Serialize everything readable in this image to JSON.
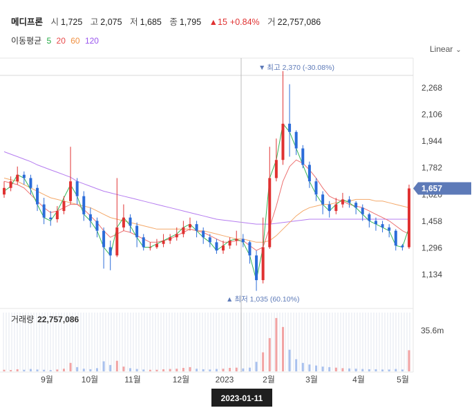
{
  "header": {
    "name": "메디프론",
    "open_label": "시",
    "open": "1,725",
    "high_label": "고",
    "high": "2,075",
    "low_label": "저",
    "low": "1,685",
    "close_label": "종",
    "close": "1,795",
    "change_arrow": "▲",
    "change": "15",
    "change_pct": "+0.84%",
    "volume_label": "거",
    "volume": "22,757,086"
  },
  "ma_legend": {
    "label": "이동평균",
    "periods": [
      {
        "label": "5",
        "color": "#22aa44"
      },
      {
        "label": "20",
        "color": "#e84a4a"
      },
      {
        "label": "60",
        "color": "#f09040"
      },
      {
        "label": "120",
        "color": "#9955ee"
      }
    ]
  },
  "scale_mode": {
    "label": "Linear",
    "icon": "chevron-down-icon"
  },
  "colors": {
    "up": "#e03232",
    "down": "#2b6cd9",
    "accent": "#5d7ab8"
  },
  "chart_data": {
    "type": "candlestick",
    "price_ticks": [
      "2,268",
      "2,106",
      "1,944",
      "1,782",
      "1,620",
      "1,458",
      "1,296",
      "1,134"
    ],
    "price_tick_values": [
      2268,
      2106,
      1944,
      1782,
      1620,
      1458,
      1296,
      1134
    ],
    "ylim": [
      1000,
      2500
    ],
    "x_ticks": [
      "9월",
      "10월",
      "11월",
      "12월",
      "2023",
      "2월",
      "3월",
      "4월",
      "5월"
    ],
    "last_price": {
      "value": 1657,
      "label": "1,657"
    },
    "max_label": {
      "value": 2370,
      "label": "최고 2,370 (-30.08%)",
      "prefix": "▼"
    },
    "min_label": {
      "value": 1035,
      "label": "최저 1,035 (60.10%)",
      "prefix": "▲"
    },
    "crosshair_date": "2023-01-11",
    "volume_panel": {
      "label": "거래량",
      "value": "22,757,086",
      "axis_tick": "35.6m",
      "axis_tick_value": 35600000
    },
    "ma_curves": {
      "ma5": [
        1640,
        1670,
        1740,
        1720,
        1650,
        1560,
        1480,
        1460,
        1520,
        1600,
        1680,
        1610,
        1500,
        1460,
        1400,
        1300,
        1250,
        1420,
        1480,
        1430,
        1360,
        1300,
        1300,
        1320,
        1340,
        1360,
        1380,
        1420,
        1440,
        1400,
        1360,
        1330,
        1280,
        1310,
        1340,
        1350,
        1330,
        1250,
        1100,
        1300,
        1720,
        1830,
        2050,
        2000,
        1900,
        1800,
        1700,
        1620,
        1560,
        1520,
        1560,
        1590,
        1570,
        1540,
        1500,
        1460,
        1440,
        1420,
        1400,
        1310,
        1300,
        1420
      ],
      "ma20": [
        1700,
        1690,
        1680,
        1660,
        1620,
        1580,
        1540,
        1510,
        1520,
        1540,
        1560,
        1560,
        1530,
        1490,
        1450,
        1400,
        1360,
        1380,
        1400,
        1390,
        1370,
        1350,
        1330,
        1330,
        1340,
        1350,
        1370,
        1390,
        1410,
        1400,
        1390,
        1370,
        1350,
        1330,
        1330,
        1340,
        1340,
        1310,
        1280,
        1300,
        1420,
        1550,
        1700,
        1790,
        1830,
        1810,
        1770,
        1720,
        1660,
        1610,
        1590,
        1580,
        1560,
        1550,
        1540,
        1520,
        1500,
        1480,
        1460,
        1430,
        1400,
        1380
      ],
      "ma60": [
        1720,
        1710,
        1700,
        1680,
        1660,
        1640,
        1620,
        1600,
        1590,
        1580,
        1570,
        1560,
        1550,
        1540,
        1520,
        1500,
        1480,
        1470,
        1460,
        1450,
        1440,
        1430,
        1420,
        1410,
        1410,
        1410,
        1410,
        1410,
        1410,
        1400,
        1400,
        1390,
        1380,
        1370,
        1360,
        1350,
        1350,
        1340,
        1330,
        1330,
        1340,
        1370,
        1410,
        1450,
        1490,
        1520,
        1540,
        1550,
        1560,
        1560,
        1570,
        1580,
        1580,
        1590,
        1590,
        1590,
        1580,
        1580,
        1570,
        1560,
        1550,
        1540
      ],
      "ma120": [
        1880,
        1865,
        1850,
        1835,
        1820,
        1800,
        1785,
        1770,
        1755,
        1740,
        1725,
        1700,
        1685,
        1670,
        1655,
        1640,
        1630,
        1620,
        1610,
        1600,
        1590,
        1580,
        1570,
        1560,
        1550,
        1540,
        1530,
        1520,
        1510,
        1500,
        1490,
        1480,
        1470,
        1465,
        1460,
        1455,
        1450,
        1445,
        1440,
        1440,
        1440,
        1445,
        1450,
        1455,
        1460,
        1465,
        1470,
        1470,
        1470,
        1470,
        1470,
        1470,
        1470,
        1470,
        1470,
        1470,
        1470,
        1470,
        1470,
        1470,
        1470,
        1470
      ]
    },
    "candles": [
      [
        1620,
        1660,
        1700,
        1600
      ],
      [
        1660,
        1700,
        1730,
        1640
      ],
      [
        1700,
        1740,
        1790,
        1680
      ],
      [
        1740,
        1720,
        1760,
        1680
      ],
      [
        1720,
        1660,
        1740,
        1620
      ],
      [
        1660,
        1560,
        1680,
        1520
      ],
      [
        1560,
        1480,
        1600,
        1440
      ],
      [
        1480,
        1470,
        1520,
        1430
      ],
      [
        1470,
        1520,
        1550,
        1450
      ],
      [
        1520,
        1580,
        1610,
        1500
      ],
      [
        1580,
        1700,
        1910,
        1560
      ],
      [
        1700,
        1610,
        1720,
        1560
      ],
      [
        1610,
        1500,
        1640,
        1460
      ],
      [
        1500,
        1460,
        1540,
        1420
      ],
      [
        1460,
        1400,
        1480,
        1360
      ],
      [
        1400,
        1300,
        1420,
        1170
      ],
      [
        1300,
        1250,
        1340,
        1160
      ],
      [
        1250,
        1420,
        1720,
        1240
      ],
      [
        1420,
        1480,
        1560,
        1400
      ],
      [
        1480,
        1430,
        1500,
        1390
      ],
      [
        1430,
        1360,
        1450,
        1300
      ],
      [
        1360,
        1300,
        1380,
        1280
      ],
      [
        1300,
        1300,
        1330,
        1280
      ],
      [
        1300,
        1320,
        1350,
        1290
      ],
      [
        1320,
        1340,
        1380,
        1300
      ],
      [
        1340,
        1360,
        1380,
        1320
      ],
      [
        1360,
        1380,
        1420,
        1340
      ],
      [
        1380,
        1420,
        1460,
        1360
      ],
      [
        1420,
        1440,
        1480,
        1400
      ],
      [
        1440,
        1400,
        1460,
        1360
      ],
      [
        1400,
        1360,
        1420,
        1320
      ],
      [
        1360,
        1330,
        1380,
        1300
      ],
      [
        1330,
        1280,
        1350,
        1260
      ],
      [
        1280,
        1310,
        1340,
        1260
      ],
      [
        1310,
        1340,
        1360,
        1290
      ],
      [
        1340,
        1350,
        1400,
        1310
      ],
      [
        1350,
        1330,
        1380,
        1300
      ],
      [
        1330,
        1250,
        1340,
        1200
      ],
      [
        1250,
        1100,
        1280,
        1035
      ],
      [
        1100,
        1300,
        1480,
        1080
      ],
      [
        1300,
        1720,
        1910,
        1290
      ],
      [
        1720,
        1830,
        1960,
        1700
      ],
      [
        1830,
        2050,
        2370,
        1800
      ],
      [
        2050,
        2000,
        2290,
        1850
      ],
      [
        2000,
        1900,
        2010,
        1860
      ],
      [
        1900,
        1800,
        1920,
        1780
      ],
      [
        1800,
        1700,
        1820,
        1660
      ],
      [
        1700,
        1620,
        1720,
        1580
      ],
      [
        1620,
        1560,
        1640,
        1500
      ],
      [
        1560,
        1520,
        1580,
        1480
      ],
      [
        1520,
        1560,
        1600,
        1500
      ],
      [
        1560,
        1590,
        1630,
        1540
      ],
      [
        1590,
        1570,
        1610,
        1540
      ],
      [
        1570,
        1540,
        1580,
        1500
      ],
      [
        1540,
        1500,
        1560,
        1460
      ],
      [
        1500,
        1460,
        1510,
        1420
      ],
      [
        1460,
        1440,
        1480,
        1400
      ],
      [
        1440,
        1420,
        1460,
        1390
      ],
      [
        1420,
        1400,
        1440,
        1360
      ],
      [
        1400,
        1310,
        1410,
        1280
      ],
      [
        1310,
        1300,
        1320,
        1280
      ],
      [
        1300,
        1657,
        1680,
        1290
      ]
    ],
    "volumes": [
      0.6,
      0.5,
      0.8,
      0.6,
      0.9,
      0.7,
      0.6,
      0.5,
      0.7,
      1.0,
      3.2,
      1.6,
      1.0,
      0.8,
      1.2,
      3.8,
      2.4,
      4.0,
      1.8,
      1.2,
      0.9,
      0.7,
      0.6,
      0.6,
      0.8,
      0.9,
      1.0,
      1.3,
      1.6,
      1.0,
      0.8,
      0.7,
      0.9,
      1.0,
      1.3,
      1.4,
      1.1,
      1.4,
      3.6,
      7.2,
      12.6,
      20.2,
      16.8,
      8.2,
      4.6,
      3.2,
      2.6,
      2.2,
      1.8,
      1.6,
      1.4,
      1.2,
      1.1,
      1.0,
      0.9,
      0.8,
      0.8,
      0.7,
      0.7,
      0.9,
      0.7,
      8.0
    ]
  },
  "axis_tag_icon": "price-tag-icon"
}
